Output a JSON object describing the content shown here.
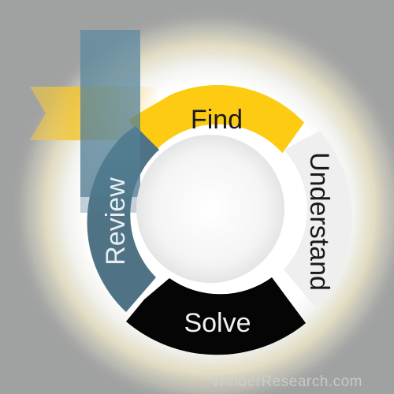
{
  "diagram": {
    "segments": [
      {
        "label": "Find",
        "color": "#fccb12",
        "text_color": "#1a1a1a"
      },
      {
        "label": "Understand",
        "color": "#efefef",
        "text_color": "#1a1a1a"
      },
      {
        "label": "Solve",
        "color": "#050505",
        "text_color": "#f2f2f2"
      },
      {
        "label": "Review",
        "color": "#4f7385",
        "text_color": "#e7edf1"
      }
    ],
    "ribbon_colors": {
      "yellow": "#f3c531",
      "teal": "#4f7a8e"
    }
  },
  "watermark": "WinderResearch.com"
}
